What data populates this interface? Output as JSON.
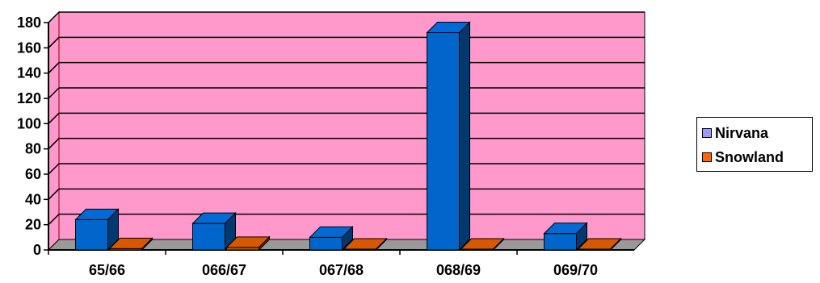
{
  "chart_data": {
    "type": "bar",
    "categories": [
      "65/66",
      "066/67",
      "067/68",
      "068/69",
      "069/70"
    ],
    "series": [
      {
        "name": "Nirvana",
        "values": [
          24,
          21,
          10,
          172,
          13
        ],
        "color": "#0066cc",
        "legend_color": "#9999ff"
      },
      {
        "name": "Snowland",
        "values": [
          1,
          2,
          0,
          0,
          0
        ],
        "color": "#cc5500",
        "legend_color": "#ff6600"
      }
    ],
    "title": "",
    "xlabel": "",
    "ylabel": "",
    "ylim": [
      0,
      180
    ],
    "yticks": [
      "0",
      "20",
      "40",
      "60",
      "80",
      "100",
      "120",
      "140",
      "160",
      "180"
    ],
    "grid": true,
    "legend_position": "right",
    "plot_background": "#ff99cc",
    "floor_color": "#999999"
  }
}
